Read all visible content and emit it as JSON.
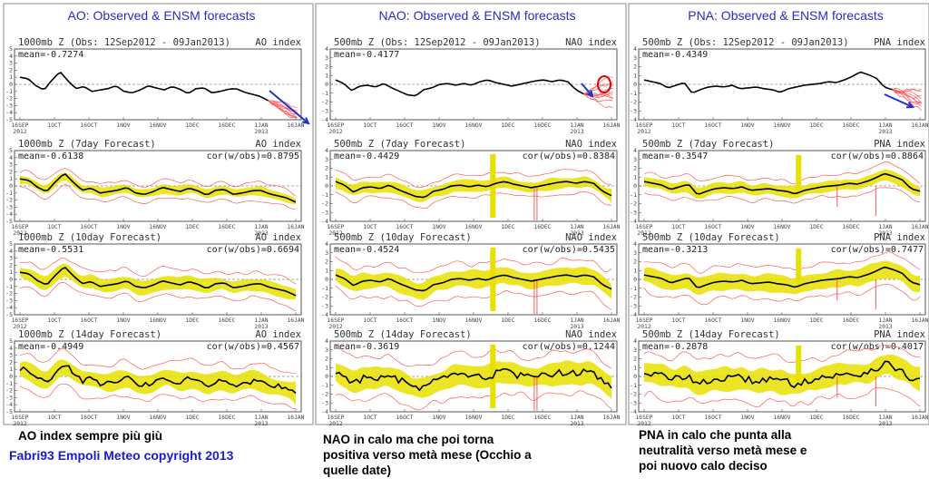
{
  "colors": {
    "title": "#2a2ac8",
    "observed": "#000000",
    "spread": "#e8e000",
    "members": "#ff5a5a",
    "annotation": "#2030d0",
    "circle": "#e00000",
    "credit": "#1a1ad6"
  },
  "x_ticks": [
    "16SEP|2012",
    "1OCT",
    "16OCT",
    "1NOV",
    "16NOV",
    "1DEC",
    "16DEC",
    "1JAN|2013",
    "16JAN"
  ],
  "y_ticks": [
    "5",
    "4",
    "3",
    "2",
    "1",
    "0",
    "-1",
    "-2",
    "-3",
    "-4",
    "-5"
  ],
  "panels": [
    {
      "title": "AO: Observed & ENSM forecasts",
      "caption_lines": [
        "AO index sempre più giù"
      ],
      "credit": "Fabri93 Empoli Meteo copyright 2013",
      "charts": [
        {
          "left": "1000mb Z (Obs: 12Sep2012 - 09Jan2013)",
          "right": "AO index",
          "mean": "mean=-0.7274",
          "cor": ""
        },
        {
          "left": "1000mb Z (7day Forecast)",
          "right": "AO index",
          "mean": "mean=-0.6138",
          "cor": "cor(w/obs)=0.8795"
        },
        {
          "left": "1000mb Z (10day Forecast)",
          "right": "AO index",
          "mean": "mean=-0.5531",
          "cor": "cor(w/obs)=0.6694"
        },
        {
          "left": "1000mb Z (14day Forecast)",
          "right": "AO index",
          "mean": "mean=-0.4949",
          "cor": "cor(w/obs)=0.4567"
        }
      ]
    },
    {
      "title": "NAO: Observed & ENSM forecasts",
      "caption_lines": [
        "NAO in calo ma che poi torna",
        "positiva verso metà mese (Occhio a",
        "quelle date)"
      ],
      "credit": "",
      "charts": [
        {
          "left": "500mb Z (Obs: 12Sep2012 - 09Jan2013)",
          "right": "NAO index",
          "mean": "mean=-0.4177",
          "cor": ""
        },
        {
          "left": "500mb Z (7day Forecast)",
          "right": "NAO index",
          "mean": "mean=-0.4429",
          "cor": "cor(w/obs)=0.8384"
        },
        {
          "left": "500mb Z (10day Forecast)",
          "right": "NAO index",
          "mean": "mean=-0.4524",
          "cor": "cor(w/obs)=0.5435"
        },
        {
          "left": "500mb Z (14day Forecast)",
          "right": "NAO index",
          "mean": "mean=-0.3619",
          "cor": "cor(w/obs)=0.1244"
        }
      ]
    },
    {
      "title": "PNA: Observed & ENSM forecasts",
      "caption_lines": [
        "PNA in calo che punta alla",
        "neutralità verso metà mese e",
        "poi nuovo calo deciso"
      ],
      "credit": "",
      "charts": [
        {
          "left": "500mb Z (Obs: 12Sep2012 - 09Jan2013)",
          "right": "PNA index",
          "mean": "mean=-0.4349",
          "cor": ""
        },
        {
          "left": "500mb Z (7day Forecast)",
          "right": "PNA index",
          "mean": "mean=-0.3547",
          "cor": "cor(w/obs)=0.8864"
        },
        {
          "left": "500mb Z (10day Forecast)",
          "right": "PNA index",
          "mean": "mean=-0.3213",
          "cor": "cor(w/obs)=0.7477"
        },
        {
          "left": "500mb Z (14day Forecast)",
          "right": "PNA index",
          "mean": "mean=-0.2878",
          "cor": "cor(w/obs)=0.4017"
        }
      ]
    }
  ],
  "chart_data": [
    {
      "type": "line",
      "title": "AO: Observed & ENSM forecasts",
      "x_start": "2012-09-12",
      "x_step_days": 4,
      "ylim": [
        -5,
        5
      ],
      "series": [
        {
          "values": [
            1.0,
            0.8,
            -0.2,
            -0.8,
            0.6,
            1.8,
            0.5,
            -0.6,
            -0.3,
            -1.0,
            -0.8,
            -0.6,
            -0.2,
            -1.0,
            -1.2,
            -0.8,
            -0.2,
            -0.5,
            -0.8,
            -0.3,
            -0.7,
            -1.3,
            -0.6,
            -0.5,
            -1.2,
            -1.0,
            -0.7,
            -0.6,
            -1.1,
            -1.4,
            -1.7,
            -2.3
          ]
        }
      ]
    },
    {
      "type": "line",
      "title": "NAO: Observed & ENSM forecasts",
      "x_start": "2012-09-12",
      "x_step_days": 4,
      "ylim": [
        -4,
        4
      ],
      "series": [
        {
          "values": [
            0.5,
            0.1,
            -0.7,
            -0.2,
            -0.1,
            -0.3,
            0.1,
            -0.4,
            -0.8,
            -1.2,
            -1.3,
            -0.6,
            -0.4,
            0.0,
            0.1,
            -0.1,
            0.1,
            -0.1,
            0.3,
            0.5,
            0.2,
            0.0,
            -0.2,
            0.0,
            0.2,
            0.4,
            0.5,
            0.3,
            0.5,
            0.3,
            -0.6,
            -1.1
          ]
        }
      ]
    },
    {
      "type": "line",
      "title": "PNA: Observed & ENSM forecasts",
      "x_start": "2012-09-12",
      "x_step_days": 4,
      "ylim": [
        -4,
        4
      ],
      "series": [
        {
          "values": [
            0.5,
            0.3,
            0.1,
            -0.4,
            -0.1,
            0.2,
            -1.0,
            -0.6,
            -0.3,
            -0.2,
            -0.3,
            -0.1,
            -0.5,
            -0.4,
            -0.3,
            -0.5,
            -0.6,
            -0.9,
            -0.5,
            -0.3,
            -0.1,
            0.0,
            0.1,
            0.3,
            0.2,
            0.5,
            0.9,
            1.4,
            1.1,
            0.7,
            -0.3,
            -0.6
          ]
        }
      ]
    }
  ]
}
